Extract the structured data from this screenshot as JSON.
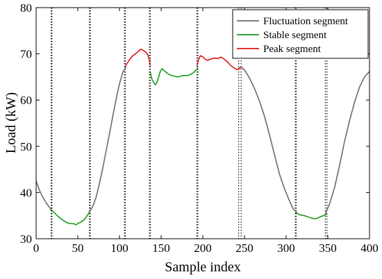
{
  "chart_data": {
    "type": "line",
    "title": "",
    "xlabel": "Sample index",
    "ylabel": "Load (kW)",
    "xlim": [
      0,
      400
    ],
    "ylim": [
      30,
      80
    ],
    "xticks": [
      0,
      50,
      100,
      150,
      200,
      250,
      300,
      350,
      400
    ],
    "yticks": [
      30,
      40,
      50,
      60,
      70,
      80
    ],
    "grid": false,
    "legend_position": "top-right",
    "boundaries": [
      18,
      19,
      64,
      65,
      106,
      107,
      136,
      137,
      193,
      194,
      243,
      246,
      311,
      312,
      347,
      349
    ],
    "series": [
      {
        "name": "Fluctuation segment",
        "color": "#6b6b6b",
        "segments": [
          [
            [
              0,
              42.5
            ],
            [
              4,
              40.5
            ],
            [
              8,
              39
            ],
            [
              12,
              37.8
            ],
            [
              16,
              36.8
            ],
            [
              18,
              36.3
            ],
            [
              20,
              36
            ]
          ],
          [
            [
              64,
              35.8
            ],
            [
              68,
              37
            ],
            [
              72,
              39
            ],
            [
              76,
              42
            ],
            [
              80,
              45.3
            ],
            [
              84,
              49
            ],
            [
              88,
              52.7
            ],
            [
              92,
              56.5
            ],
            [
              96,
              60.2
            ],
            [
              100,
              63.5
            ],
            [
              104,
              66
            ],
            [
              108,
              67.2
            ]
          ],
          [
            [
              243,
              66.8
            ],
            [
              246,
              67.2
            ],
            [
              250,
              66.5
            ],
            [
              256,
              64.8
            ],
            [
              262,
              62.5
            ],
            [
              268,
              59.8
            ],
            [
              274,
              56.5
            ],
            [
              280,
              52.5
            ],
            [
              286,
              48.2
            ],
            [
              292,
              44
            ],
            [
              298,
              40.8
            ],
            [
              304,
              38.2
            ],
            [
              308,
              36.6
            ],
            [
              312,
              35.8
            ]
          ],
          [
            [
              347,
              35.4
            ],
            [
              352,
              37.5
            ],
            [
              358,
              41
            ],
            [
              364,
              45.8
            ],
            [
              370,
              51
            ],
            [
              376,
              55.5
            ],
            [
              382,
              59.5
            ],
            [
              388,
              62.8
            ],
            [
              394,
              65
            ],
            [
              400,
              66.2
            ]
          ]
        ]
      },
      {
        "name": "Stable segment",
        "color": "#1a9a1a",
        "segments": [
          [
            [
              18,
              36.3
            ],
            [
              22,
              35.6
            ],
            [
              26,
              34.9
            ],
            [
              30,
              34.3
            ],
            [
              34,
              33.8
            ],
            [
              38,
              33.4
            ],
            [
              42,
              33.3
            ],
            [
              46,
              33.2
            ],
            [
              48,
              33
            ],
            [
              50,
              33.3
            ],
            [
              54,
              33.6
            ],
            [
              58,
              34.2
            ],
            [
              62,
              35.2
            ],
            [
              65,
              36
            ]
          ],
          [
            [
              137,
              66
            ],
            [
              139,
              64.5
            ],
            [
              141,
              63.8
            ],
            [
              143,
              63.3
            ],
            [
              145,
              63.8
            ],
            [
              147,
              65
            ],
            [
              149,
              66.2
            ],
            [
              151,
              66.8
            ],
            [
              153,
              66.5
            ],
            [
              156,
              66
            ],
            [
              160,
              65.5
            ],
            [
              165,
              65.2
            ],
            [
              170,
              65
            ],
            [
              176,
              65.3
            ],
            [
              182,
              65.3
            ],
            [
              188,
              65.8
            ],
            [
              192,
              66.5
            ],
            [
              194,
              67
            ]
          ],
          [
            [
              311,
              35.8
            ],
            [
              316,
              35.2
            ],
            [
              322,
              35
            ],
            [
              328,
              34.6
            ],
            [
              334,
              34.3
            ],
            [
              338,
              34.5
            ],
            [
              342,
              34.8
            ],
            [
              346,
              35.1
            ],
            [
              349,
              35.3
            ]
          ]
        ]
      },
      {
        "name": "Peak segment",
        "color": "#e01414",
        "segments": [
          [
            [
              107,
              67.3
            ],
            [
              110,
              68.2
            ],
            [
              113,
              69
            ],
            [
              116,
              69.6
            ],
            [
              119,
              70
            ],
            [
              122,
              70.4
            ],
            [
              124,
              70.8
            ],
            [
              126,
              71
            ],
            [
              128,
              70.8
            ],
            [
              130,
              70.6
            ],
            [
              132,
              70.3
            ],
            [
              134,
              69.8
            ],
            [
              136,
              68.5
            ],
            [
              137,
              67.5
            ]
          ],
          [
            [
              193,
              67.5
            ],
            [
              195,
              68.8
            ],
            [
              197,
              69.6
            ],
            [
              200,
              69.4
            ],
            [
              203,
              68.8
            ],
            [
              206,
              68.6
            ],
            [
              210,
              68.9
            ],
            [
              214,
              69.1
            ],
            [
              218,
              69
            ],
            [
              222,
              69.3
            ],
            [
              226,
              68.8
            ],
            [
              230,
              68.2
            ],
            [
              234,
              67.4
            ],
            [
              238,
              66.9
            ],
            [
              241,
              66.6
            ],
            [
              244,
              66.8
            ],
            [
              246,
              67.2
            ]
          ]
        ]
      }
    ]
  }
}
